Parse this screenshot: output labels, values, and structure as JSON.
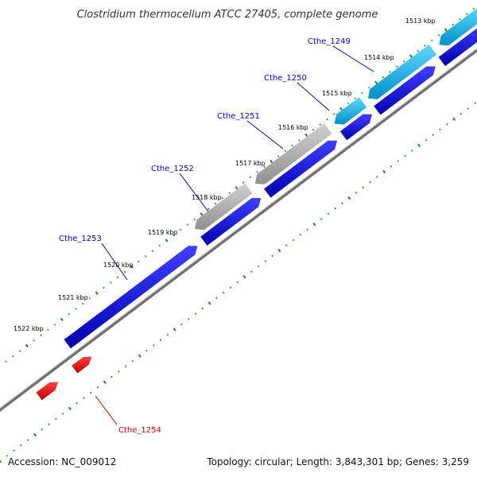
{
  "title": "Clostridium thermocellum ATCC 27405, complete genome",
  "footer": {
    "accession": "Accession: NC_009012",
    "summary": "Topology: circular; Length: 3,843,301 bp; Genes: 3,259"
  },
  "colors": {
    "forward_strand_gene": "#00a0d8",
    "reverse_strand_gene": "#0000e0",
    "pseudo_or_rna_gene": "#a8a8a8",
    "highlight_gene": "#e00000",
    "backbone": "#808080",
    "tick": "#1a8a1a",
    "gene_label_blue": "#0000cc",
    "gene_label_red": "#cc0000"
  },
  "scale_labels": [
    "1513 kbp",
    "1514 kbp",
    "1515 kbp",
    "1516 kbp",
    "1517 kbp",
    "1518 kbp",
    "1519 kbp",
    "1520 kbp",
    "1521 kbp",
    "1522 kbp"
  ],
  "gene_labels": [
    {
      "name": "Cthe_1249",
      "color": "#0000cc"
    },
    {
      "name": "Cthe_1250",
      "color": "#0000cc"
    },
    {
      "name": "Cthe_1251",
      "color": "#0000cc"
    },
    {
      "name": "Cthe_1252",
      "color": "#0000cc"
    },
    {
      "name": "Cthe_1253",
      "color": "#0000cc"
    },
    {
      "name": "Cthe_1254",
      "color": "#cc0000"
    }
  ]
}
